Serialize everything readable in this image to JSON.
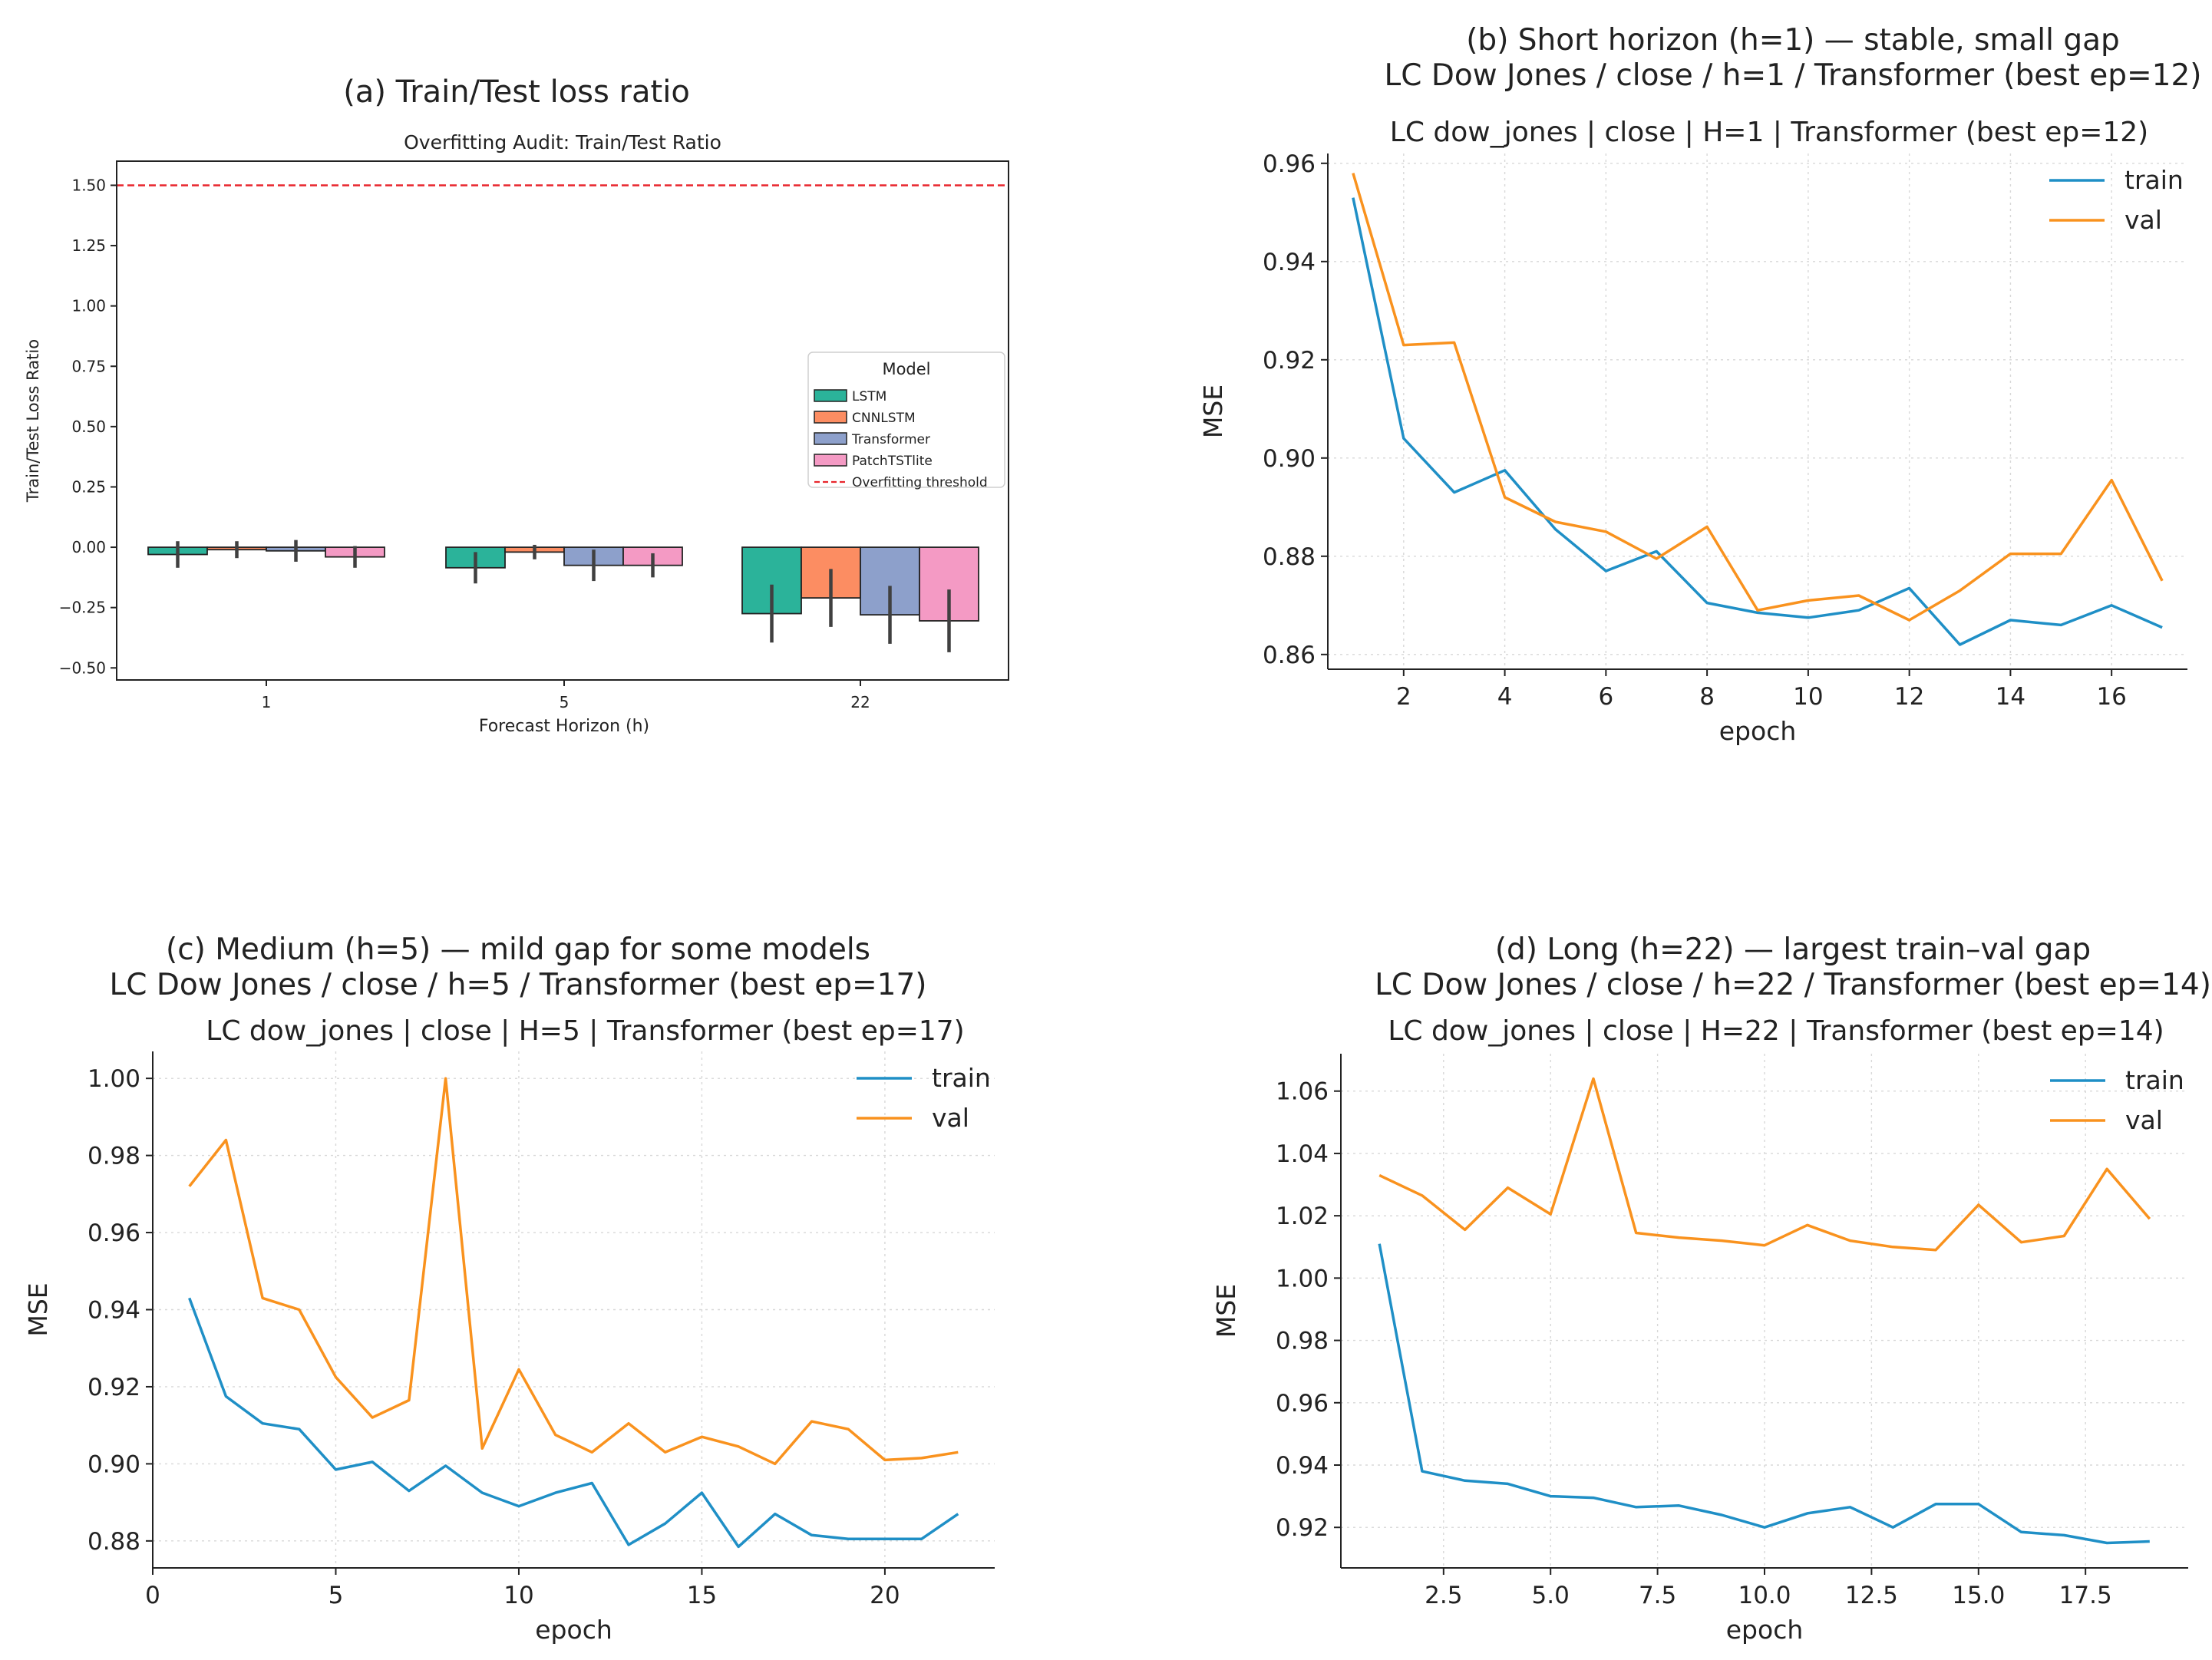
{
  "colors": {
    "lstm": "#2bb39a",
    "cnnlstm": "#fc8d62",
    "transformer": "#8da0cb",
    "patchtst": "#f49ac4",
    "threshold": "#e8262d",
    "train": "#1f8fc6",
    "val": "#f9921e",
    "grid": "#d8d8d8",
    "errorbar": "#404040"
  },
  "chart_data": [
    {
      "id": "a",
      "type": "bar",
      "outer_title": "(a) Train/Test loss ratio",
      "title": "Overfitting Audit: Train/Test Ratio",
      "xlabel": "Forecast Horizon (h)",
      "ylabel": "Train/Test Loss Ratio",
      "categories": [
        "1",
        "5",
        "22"
      ],
      "ylim": [
        -0.55,
        1.6
      ],
      "yticks": [
        -0.5,
        -0.25,
        0.0,
        0.25,
        0.5,
        0.75,
        1.0,
        1.25,
        1.5
      ],
      "ytick_labels": [
        "−0.50",
        "−0.25",
        "0.00",
        "0.25",
        "0.50",
        "0.75",
        "1.00",
        "1.25",
        "1.50"
      ],
      "threshold": 1.5,
      "legend_title": "Model",
      "legend_position": "center-right",
      "threshold_label": "Overfitting threshold",
      "series": [
        {
          "name": "LSTM",
          "values": [
            -0.03,
            -0.085,
            -0.275
          ],
          "err": [
            0.055,
            0.065,
            0.12
          ]
        },
        {
          "name": "CNNLSTM",
          "values": [
            -0.01,
            -0.02,
            -0.21
          ],
          "err": [
            0.035,
            0.03,
            0.12
          ]
        },
        {
          "name": "Transformer",
          "values": [
            -0.015,
            -0.075,
            -0.28
          ],
          "err": [
            0.045,
            0.065,
            0.12
          ]
        },
        {
          "name": "PatchTSTlite",
          "values": [
            -0.04,
            -0.075,
            -0.305
          ],
          "err": [
            0.045,
            0.05,
            0.13
          ]
        }
      ]
    },
    {
      "id": "b",
      "type": "line",
      "outer_title": [
        "(b) Short horizon (h=1) — stable, small gap",
        "LC Dow Jones / close / h=1 / Transformer (best ep=12)"
      ],
      "title": "LC dow_jones | close | H=1 | Transformer (best ep=12)",
      "xlabel": "epoch",
      "ylabel": "MSE",
      "xlim": [
        0.5,
        17.5
      ],
      "ylim": [
        0.857,
        0.962
      ],
      "xticks": [
        2,
        4,
        6,
        8,
        10,
        12,
        14,
        16
      ],
      "xtick_labels": [
        "2",
        "4",
        "6",
        "8",
        "10",
        "12",
        "14",
        "16"
      ],
      "yticks": [
        0.86,
        0.88,
        0.9,
        0.92,
        0.94,
        0.96
      ],
      "ytick_labels": [
        "0.86",
        "0.88",
        "0.90",
        "0.92",
        "0.94",
        "0.96"
      ],
      "legend_position": "upper-right",
      "x": [
        1,
        2,
        3,
        4,
        5,
        6,
        7,
        8,
        9,
        10,
        11,
        12,
        13,
        14,
        15,
        16,
        17
      ],
      "series": [
        {
          "name": "train",
          "values": [
            0.953,
            0.904,
            0.893,
            0.8975,
            0.8855,
            0.877,
            0.881,
            0.8705,
            0.8685,
            0.8675,
            0.869,
            0.8735,
            0.862,
            0.867,
            0.866,
            0.87,
            0.8655
          ]
        },
        {
          "name": "val",
          "values": [
            0.958,
            0.923,
            0.9235,
            0.892,
            0.887,
            0.885,
            0.8795,
            0.886,
            0.869,
            0.871,
            0.872,
            0.867,
            0.873,
            0.8805,
            0.8805,
            0.8955,
            0.875
          ]
        }
      ]
    },
    {
      "id": "c",
      "type": "line",
      "outer_title": [
        "(c) Medium (h=5) — mild gap for some models",
        "LC Dow Jones / close / h=5 / Transformer (best ep=17)"
      ],
      "title": "LC dow_jones | close | H=5 | Transformer (best ep=17)",
      "xlabel": "epoch",
      "ylabel": "MSE",
      "xlim": [
        0,
        23
      ],
      "ylim": [
        0.873,
        1.007
      ],
      "xticks": [
        0,
        5,
        10,
        15,
        20
      ],
      "xtick_labels": [
        "0",
        "5",
        "10",
        "15",
        "20"
      ],
      "yticks": [
        0.88,
        0.9,
        0.92,
        0.94,
        0.96,
        0.98,
        1.0
      ],
      "ytick_labels": [
        "0.88",
        "0.90",
        "0.92",
        "0.94",
        "0.96",
        "0.98",
        "1.00"
      ],
      "legend_position": "upper-right",
      "x": [
        1,
        2,
        3,
        4,
        5,
        6,
        7,
        8,
        9,
        10,
        11,
        12,
        13,
        14,
        15,
        16,
        17,
        18,
        19,
        20,
        21,
        22
      ],
      "series": [
        {
          "name": "train",
          "values": [
            0.943,
            0.9175,
            0.9105,
            0.909,
            0.8985,
            0.9005,
            0.893,
            0.8995,
            0.8925,
            0.889,
            0.8925,
            0.895,
            0.879,
            0.8845,
            0.8925,
            0.8785,
            0.887,
            0.8815,
            0.8805,
            0.8805,
            0.8805,
            0.887
          ]
        },
        {
          "name": "val",
          "values": [
            0.972,
            0.984,
            0.943,
            0.94,
            0.9225,
            0.912,
            0.9165,
            1.0,
            0.904,
            0.9245,
            0.9075,
            0.903,
            0.9105,
            0.903,
            0.907,
            0.9045,
            0.9,
            0.911,
            0.909,
            0.901,
            0.9015,
            0.903
          ]
        }
      ]
    },
    {
      "id": "d",
      "type": "line",
      "outer_title": [
        "(d) Long (h=22) — largest train–val gap",
        "LC Dow Jones / close / h=22 / Transformer (best ep=14)"
      ],
      "title": "LC dow_jones | close | H=22 | Transformer (best ep=14)",
      "xlabel": "epoch",
      "ylabel": "MSE",
      "xlim": [
        0.1,
        19.9
      ],
      "ylim": [
        0.907,
        1.072
      ],
      "xticks": [
        2.5,
        5.0,
        7.5,
        10.0,
        12.5,
        15.0,
        17.5
      ],
      "xtick_labels": [
        "2.5",
        "5.0",
        "7.5",
        "10.0",
        "12.5",
        "15.0",
        "17.5"
      ],
      "yticks": [
        0.92,
        0.94,
        0.96,
        0.98,
        1.0,
        1.02,
        1.04,
        1.06
      ],
      "ytick_labels": [
        "0.92",
        "0.94",
        "0.96",
        "0.98",
        "1.00",
        "1.02",
        "1.04",
        "1.06"
      ],
      "legend_position": "upper-right",
      "x": [
        1,
        2,
        3,
        4,
        5,
        6,
        7,
        8,
        9,
        10,
        11,
        12,
        13,
        14,
        15,
        16,
        17,
        18,
        19
      ],
      "series": [
        {
          "name": "train",
          "values": [
            1.011,
            0.938,
            0.935,
            0.934,
            0.93,
            0.9295,
            0.9265,
            0.927,
            0.924,
            0.92,
            0.9245,
            0.9265,
            0.92,
            0.9275,
            0.9275,
            0.9185,
            0.9175,
            0.915,
            0.9155
          ]
        },
        {
          "name": "val",
          "values": [
            1.033,
            1.0265,
            1.0155,
            1.029,
            1.0205,
            1.064,
            1.0145,
            1.013,
            1.012,
            1.0105,
            1.017,
            1.012,
            1.01,
            1.009,
            1.0235,
            1.0115,
            1.0135,
            1.035,
            1.019
          ]
        }
      ]
    }
  ]
}
